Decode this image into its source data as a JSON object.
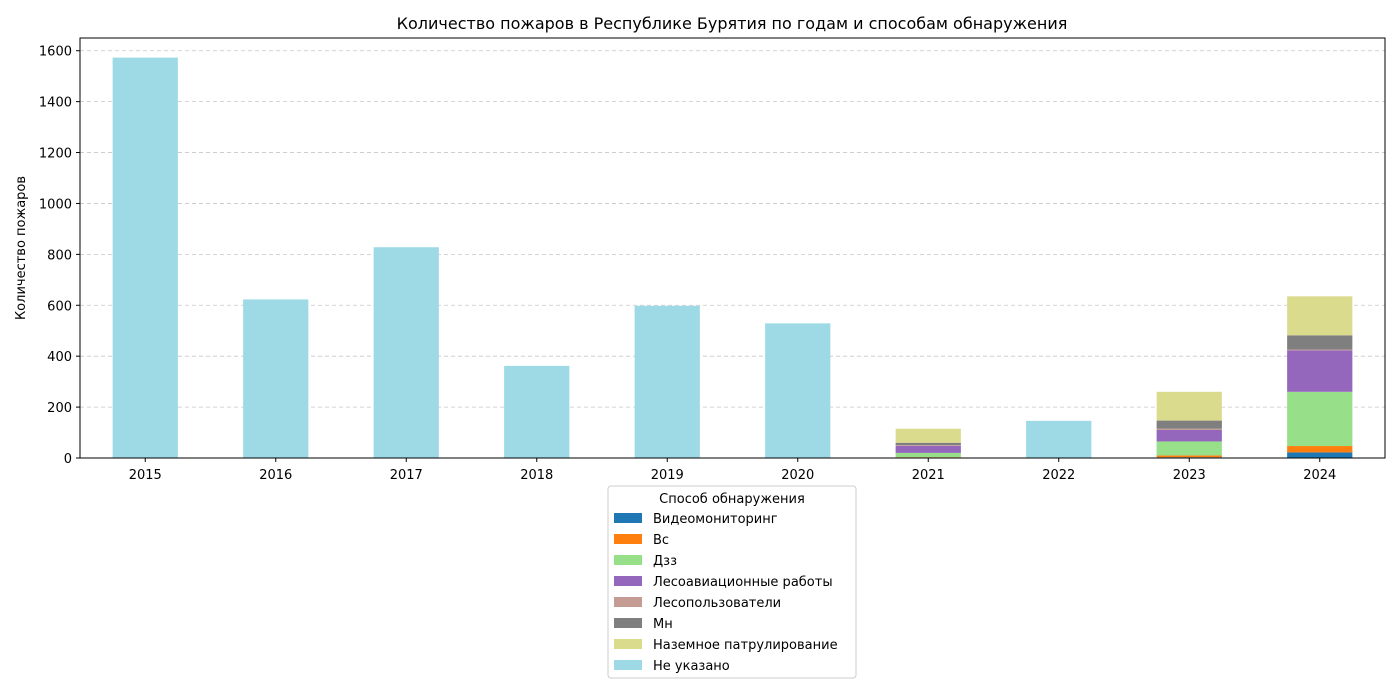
{
  "chart_data": {
    "type": "bar",
    "stacked": true,
    "title": "Количество пожаров в Республике Бурятия по годам и способам обнаружения",
    "xlabel": "",
    "ylabel": "Количество пожаров",
    "ylim": [
      0,
      1650
    ],
    "yticks": [
      0,
      200,
      400,
      600,
      800,
      1000,
      1200,
      1400,
      1600
    ],
    "grid": "y-dashed",
    "legend_title": "Способ обнаружения",
    "legend_placement": "below",
    "categories": [
      "2015",
      "2016",
      "2017",
      "2018",
      "2019",
      "2020",
      "2021",
      "2022",
      "2023",
      "2024"
    ],
    "series": [
      {
        "name": "Видеомониторинг",
        "color": "#1f77b4",
        "values": [
          0,
          0,
          0,
          0,
          0,
          0,
          2,
          0,
          3,
          22
        ]
      },
      {
        "name": "Вс",
        "color": "#ff7f0e",
        "values": [
          0,
          0,
          0,
          0,
          0,
          0,
          1,
          0,
          7,
          25
        ]
      },
      {
        "name": "Дзз",
        "color": "#98df8a",
        "values": [
          0,
          0,
          0,
          0,
          0,
          0,
          17,
          0,
          55,
          213
        ]
      },
      {
        "name": "Лесоавиационные работы",
        "color": "#9467bd",
        "values": [
          0,
          0,
          0,
          0,
          0,
          0,
          28,
          0,
          45,
          163
        ]
      },
      {
        "name": "Лесопользователи",
        "color": "#c49c94",
        "values": [
          0,
          0,
          0,
          0,
          0,
          0,
          3,
          0,
          5,
          3
        ]
      },
      {
        "name": "Мн",
        "color": "#7f7f7f",
        "values": [
          0,
          0,
          0,
          0,
          0,
          0,
          9,
          0,
          32,
          56
        ]
      },
      {
        "name": "Наземное патрулирование",
        "color": "#dbdb8d",
        "values": [
          0,
          0,
          0,
          0,
          0,
          0,
          55,
          0,
          113,
          153
        ]
      },
      {
        "name": "Не указано",
        "color": "#9edae5",
        "values": [
          1573,
          623,
          828,
          362,
          598,
          529,
          0,
          146,
          0,
          0
        ]
      }
    ]
  }
}
